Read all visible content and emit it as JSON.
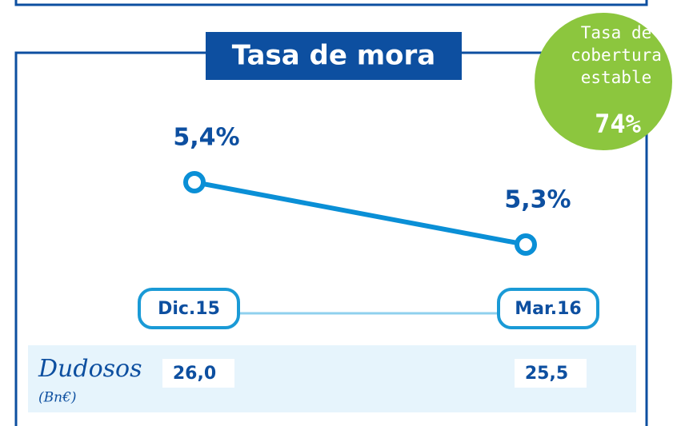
{
  "chart_data": {
    "type": "line",
    "title": "Tasa de mora",
    "categories": [
      "Dic.15",
      "Mar.16"
    ],
    "values": [
      5.4,
      5.3
    ],
    "value_labels": [
      "5,4%",
      "5,3%"
    ],
    "color": "#0a8fd6",
    "annotation": {
      "lines": [
        "Tasa de",
        "cobertura",
        "estable"
      ],
      "value": {
        "value": 74,
        "label": "74%"
      },
      "color": "#8cc63e"
    },
    "table": {
      "label": "Dudosos",
      "unit": "(Bn€)",
      "values": [
        26.0,
        25.5
      ],
      "value_labels": [
        "26,0",
        "25,5"
      ]
    }
  }
}
